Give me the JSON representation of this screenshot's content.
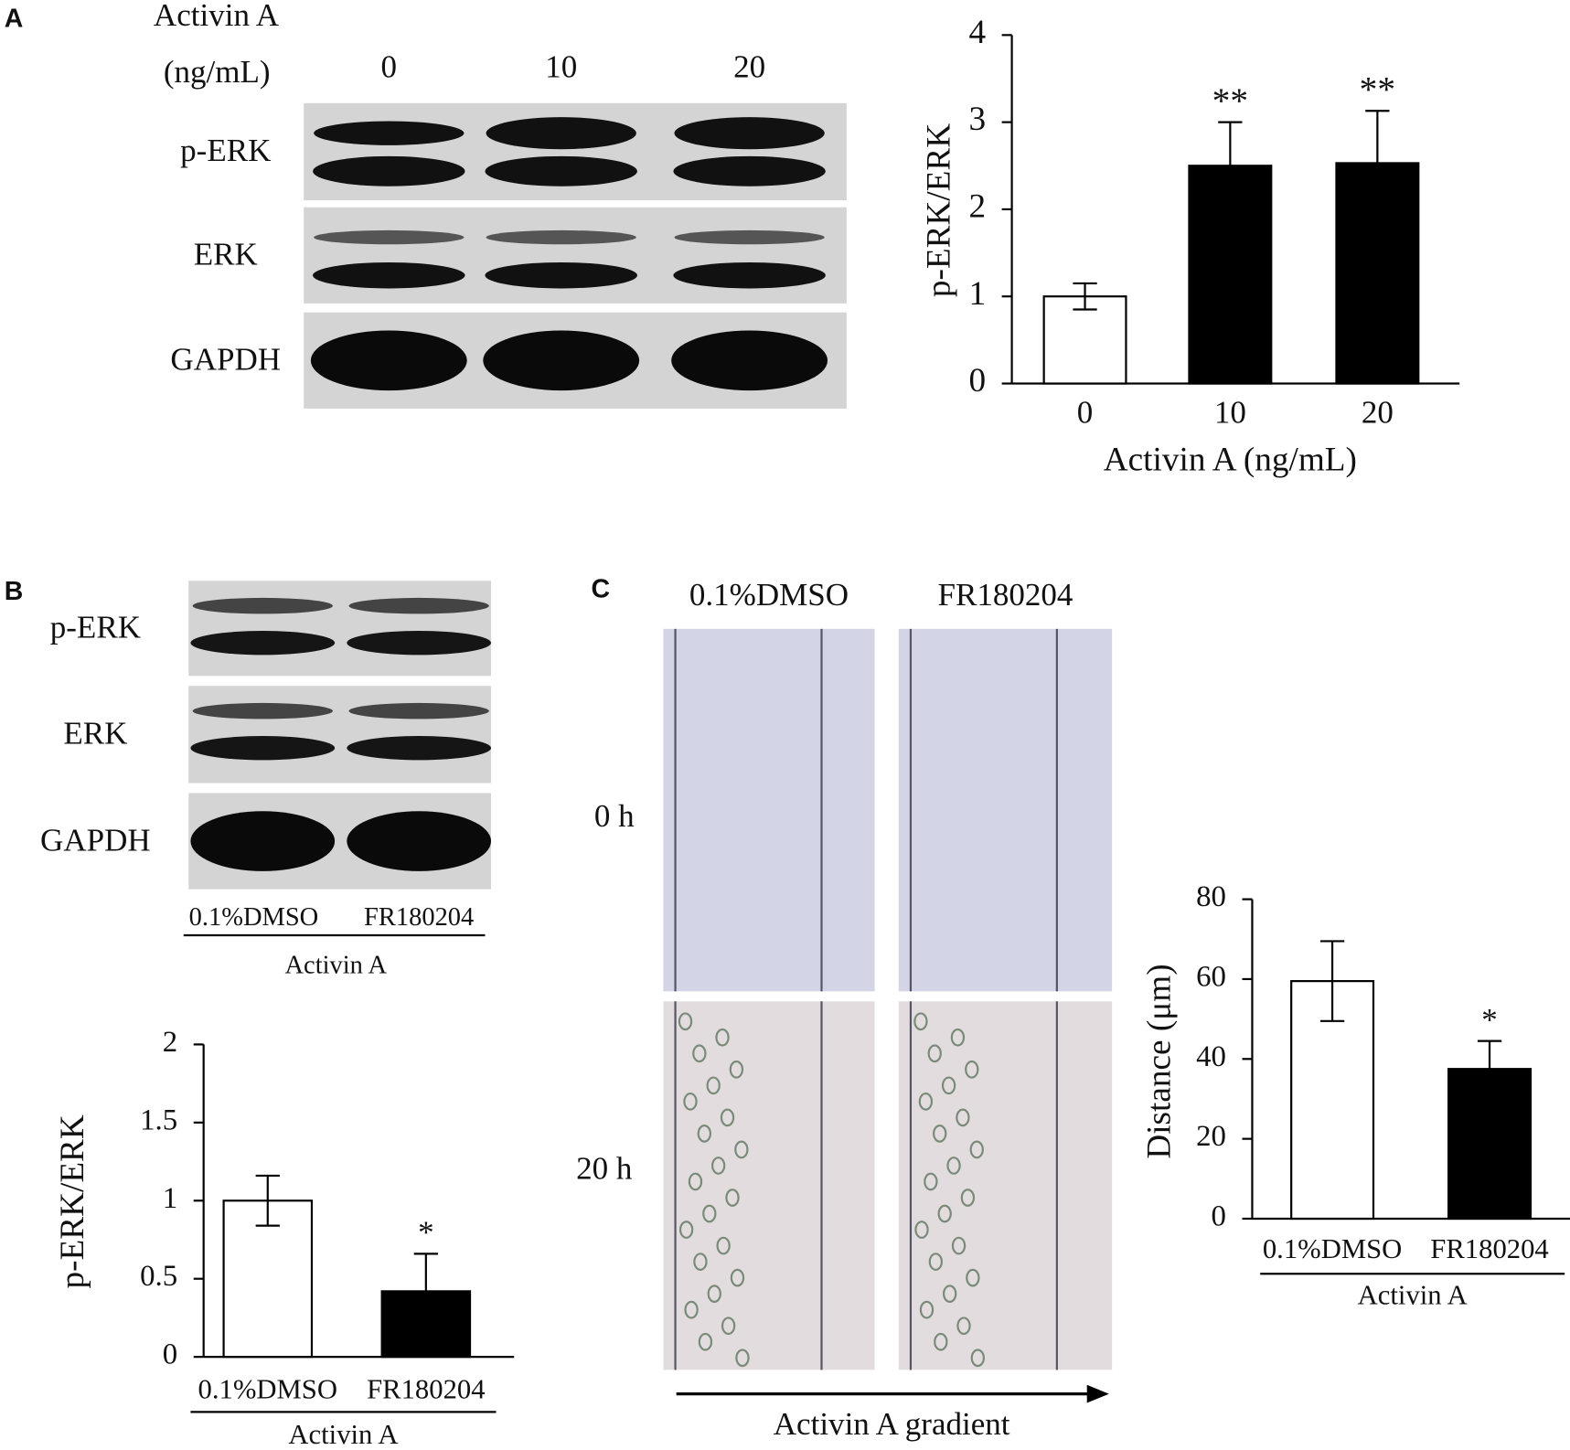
{
  "panels": {
    "a": "A",
    "b": "B",
    "c": "C"
  },
  "blot_a": {
    "treatment": "Activin A",
    "unit": "(ng/mL)",
    "lanes": [
      "0",
      "10",
      "20"
    ],
    "rows": [
      "p-ERK",
      "ERK",
      "GAPDH"
    ]
  },
  "blot_b": {
    "rows": [
      "p-ERK",
      "ERK",
      "GAPDH"
    ],
    "lanes": [
      "0.1%DMSO",
      "FR180204"
    ],
    "group": "Activin A"
  },
  "images_c": {
    "columns": [
      "0.1%DMSO",
      "FR180204"
    ],
    "rows": [
      "0 h",
      "20 h"
    ],
    "arrow": "Activin A gradient"
  },
  "chart_data": [
    {
      "type": "bar",
      "categories": [
        "0",
        "10",
        "20"
      ],
      "values": [
        1,
        2.5,
        2.53
      ],
      "errors": [
        0.15,
        0.5,
        0.6
      ],
      "annotations": [
        null,
        "**",
        "**"
      ],
      "colors": [
        "#ffffff",
        "#000000",
        "#000000"
      ],
      "y_label": "p-ERK/ERK",
      "x_label": "Activin A (ng/mL)",
      "ylim": [
        0,
        4
      ],
      "yticks": [
        0,
        1,
        2,
        3,
        4
      ]
    },
    {
      "type": "bar",
      "categories": [
        "0.1%DMSO",
        "FR180204"
      ],
      "values": [
        1,
        0.42
      ],
      "errors": [
        0.16,
        0.24
      ],
      "annotations": [
        null,
        "*"
      ],
      "colors": [
        "#ffffff",
        "#000000"
      ],
      "y_label": "p-ERK/ERK",
      "group_label": "Activin A",
      "ylim": [
        0,
        2
      ],
      "yticks": [
        0,
        0.5,
        1,
        1.5,
        2
      ]
    },
    {
      "type": "bar",
      "categories": [
        "0.1%DMSO",
        "FR180204"
      ],
      "values": [
        59.5,
        37.5
      ],
      "errors": [
        10,
        7
      ],
      "annotations": [
        null,
        "*"
      ],
      "colors": [
        "#ffffff",
        "#000000"
      ],
      "y_label": "Distance (μm)",
      "group_label": "Activin A",
      "ylim": [
        0,
        80
      ],
      "yticks": [
        0,
        20,
        40,
        60,
        80
      ]
    }
  ]
}
